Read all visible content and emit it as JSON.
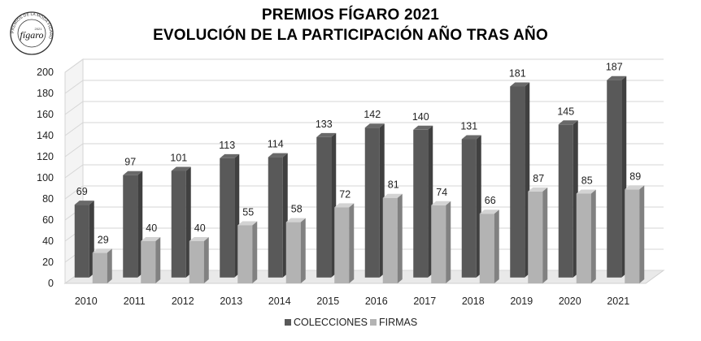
{
  "title": {
    "line1": "PREMIOS FÍGARO 2021",
    "line2": "EVOLUCIÓN DE LA PARTICIPACIÓN AÑO TRAS AÑO"
  },
  "logo": {
    "text": "fígaro",
    "ring_text": "PREMIOS DE LA MODA FÍGARO",
    "year": "2021"
  },
  "chart_data": {
    "type": "bar",
    "title": "PREMIOS FÍGARO 2021 — EVOLUCIÓN DE LA PARTICIPACIÓN AÑO TRAS AÑO",
    "categories": [
      "2010",
      "2011",
      "2012",
      "2013",
      "2014",
      "2015",
      "2016",
      "2017",
      "2018",
      "2019",
      "2020",
      "2021"
    ],
    "series": [
      {
        "name": "COLECCIONES",
        "color": "#595959",
        "values": [
          69,
          97,
          101,
          113,
          114,
          133,
          142,
          140,
          131,
          181,
          145,
          187
        ]
      },
      {
        "name": "FIRMAS",
        "color": "#b3b3b3",
        "values": [
          29,
          40,
          40,
          55,
          58,
          72,
          81,
          74,
          66,
          87,
          85,
          89
        ]
      }
    ],
    "yticks": [
      "0",
      "20",
      "40",
      "60",
      "80",
      "100",
      "120",
      "140",
      "160",
      "180",
      "200"
    ],
    "ylim": [
      0,
      200
    ],
    "grid": true,
    "three_d": true,
    "legend_position": "bottom"
  }
}
